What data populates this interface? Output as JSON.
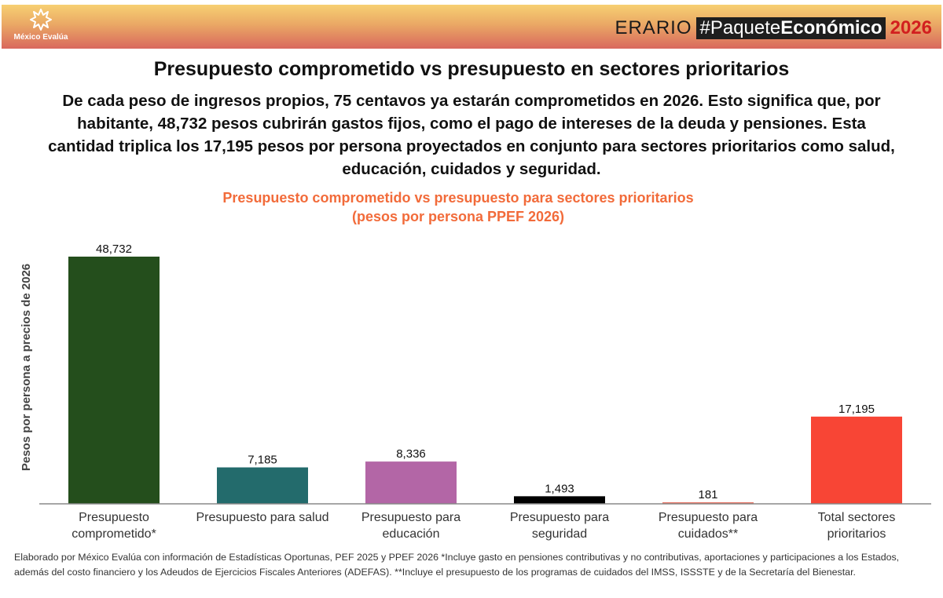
{
  "header": {
    "logo_label": "México Evalúa",
    "brand_erario": "ERARIO",
    "brand_hash": "#Paquete",
    "brand_bold": "Económico",
    "brand_year": "2026",
    "colors": {
      "gradient_top": "#f7d072",
      "gradient_bottom": "#d9685d",
      "year": "#d21f1f"
    }
  },
  "title": "Presupuesto comprometido vs presupuesto en sectores prioritarios",
  "subtitle": "De cada peso de ingresos propios, 75 centavos ya estarán comprometidos en 2026. Esto significa que, por habitante, 48,732 pesos cubrirán gastos fijos, como el pago de intereses de la deuda y pensiones. Esta cantidad triplica los 17,195 pesos por persona proyectados en conjunto para sectores prioritarios como salud, educación, cuidados y seguridad.",
  "chart_title_line1": "Presupuesto comprometido vs presupuesto para sectores prioritarios",
  "chart_title_line2": "(pesos por persona PPEF 2026)",
  "chart_data": {
    "type": "bar",
    "title": "Presupuesto comprometido vs presupuesto para sectores prioritarios (pesos por persona PPEF 2026)",
    "xlabel": "",
    "ylabel": "Pesos por persona a precios de 2026",
    "ylim": [
      0,
      48732
    ],
    "grid": false,
    "legend": "none",
    "categories": [
      [
        "Presupuesto",
        "comprometido*"
      ],
      [
        "Presupuesto para salud"
      ],
      [
        "Presupuesto para",
        "educación"
      ],
      [
        "Presupuesto para",
        "seguridad"
      ],
      [
        "Presupuesto para",
        "cuidados**"
      ],
      [
        "Total sectores",
        "prioritarios"
      ]
    ],
    "values": [
      48732,
      7185,
      8336,
      1493,
      181,
      17195
    ],
    "labels": [
      "48,732",
      "7,185",
      "8,336",
      "1,493",
      "181",
      "17,195"
    ],
    "colors": [
      "#244e1c",
      "#236b6c",
      "#b366a6",
      "#000000",
      "#e8786a",
      "#f84535"
    ]
  },
  "footnote": "Elaborado por México Evalúa con información de Estadísticas Oportunas, PEF 2025 y PPEF 2026 *Incluye gasto en pensiones contributivas y no contributivas, aportaciones y participaciones a los Estados, además del costo financiero y los Adeudos de Ejercicios Fiscales Anteriores (ADEFAS). **Incluye el presupuesto de los programas de cuidados del IMSS, ISSSTE y de la Secretaría del Bienestar."
}
